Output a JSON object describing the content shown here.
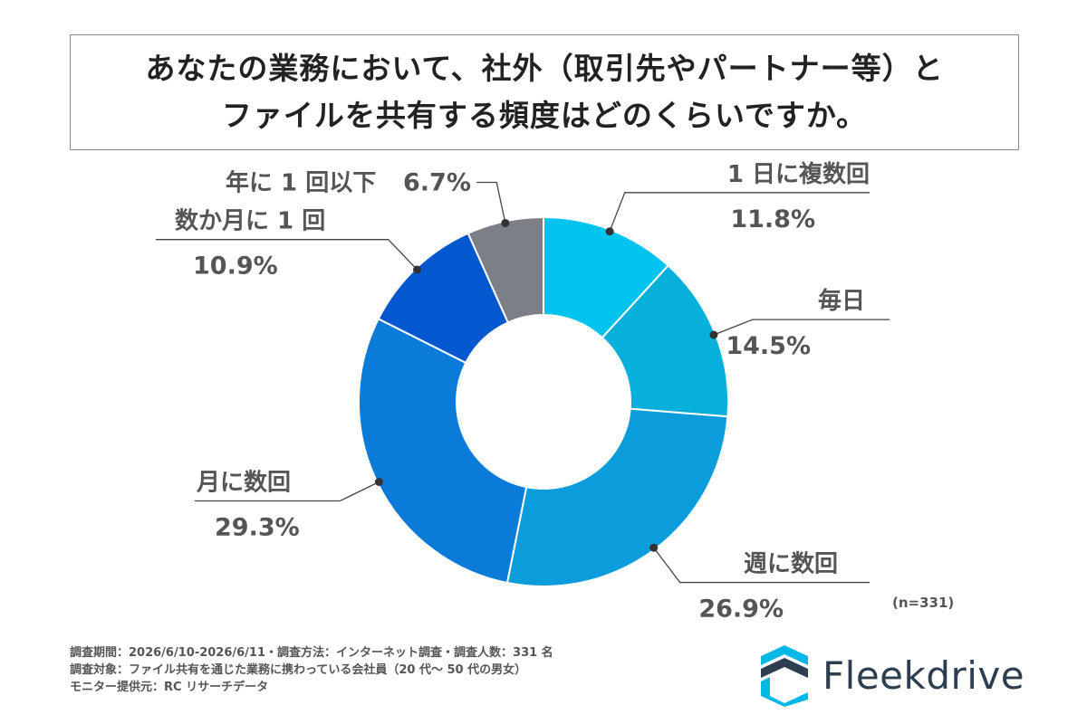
{
  "title": {
    "line1": "あなたの業務において、社外（取引先やパートナー等）と",
    "line2": "ファイルを共有する頻度はどのくらいですか。"
  },
  "chart_data": {
    "type": "pie",
    "donut": true,
    "slices": [
      {
        "label": "1 日に複数回",
        "value": 11.8,
        "value_label": "11.8%",
        "color": "#00c4ee"
      },
      {
        "label": "毎日",
        "value": 14.5,
        "value_label": "14.5%",
        "color": "#06b0db"
      },
      {
        "label": "週に数回",
        "value": 26.9,
        "value_label": "26.9%",
        "color": "#0b9cdc"
      },
      {
        "label": "月に数回",
        "value": 29.3,
        "value_label": "29.3%",
        "color": "#0a7bd8"
      },
      {
        "label": "数か月に 1 回",
        "value": 10.9,
        "value_label": "10.9%",
        "color": "#0458cf"
      },
      {
        "label": "年に 1 回以下",
        "value": 6.7,
        "value_label": "6.7%",
        "color": "#7c7f86"
      }
    ]
  },
  "sample_size": "(n=331)",
  "footnote": {
    "line1": "調査期間：2026/6/10-2026/6/11・調査方法：インターネット調査・調査人数：331 名",
    "line2": "調査対象：ファイル共有を通じた業務に携わっている会社員（20 代～ 50 代の男女）",
    "line3": "モニター提供元：RC リサーチデータ"
  },
  "logo": {
    "text": "Fleekdrive",
    "icon": "fleekdrive-logo-icon",
    "color": "#2c3e50",
    "accent": "#00b8e6"
  }
}
